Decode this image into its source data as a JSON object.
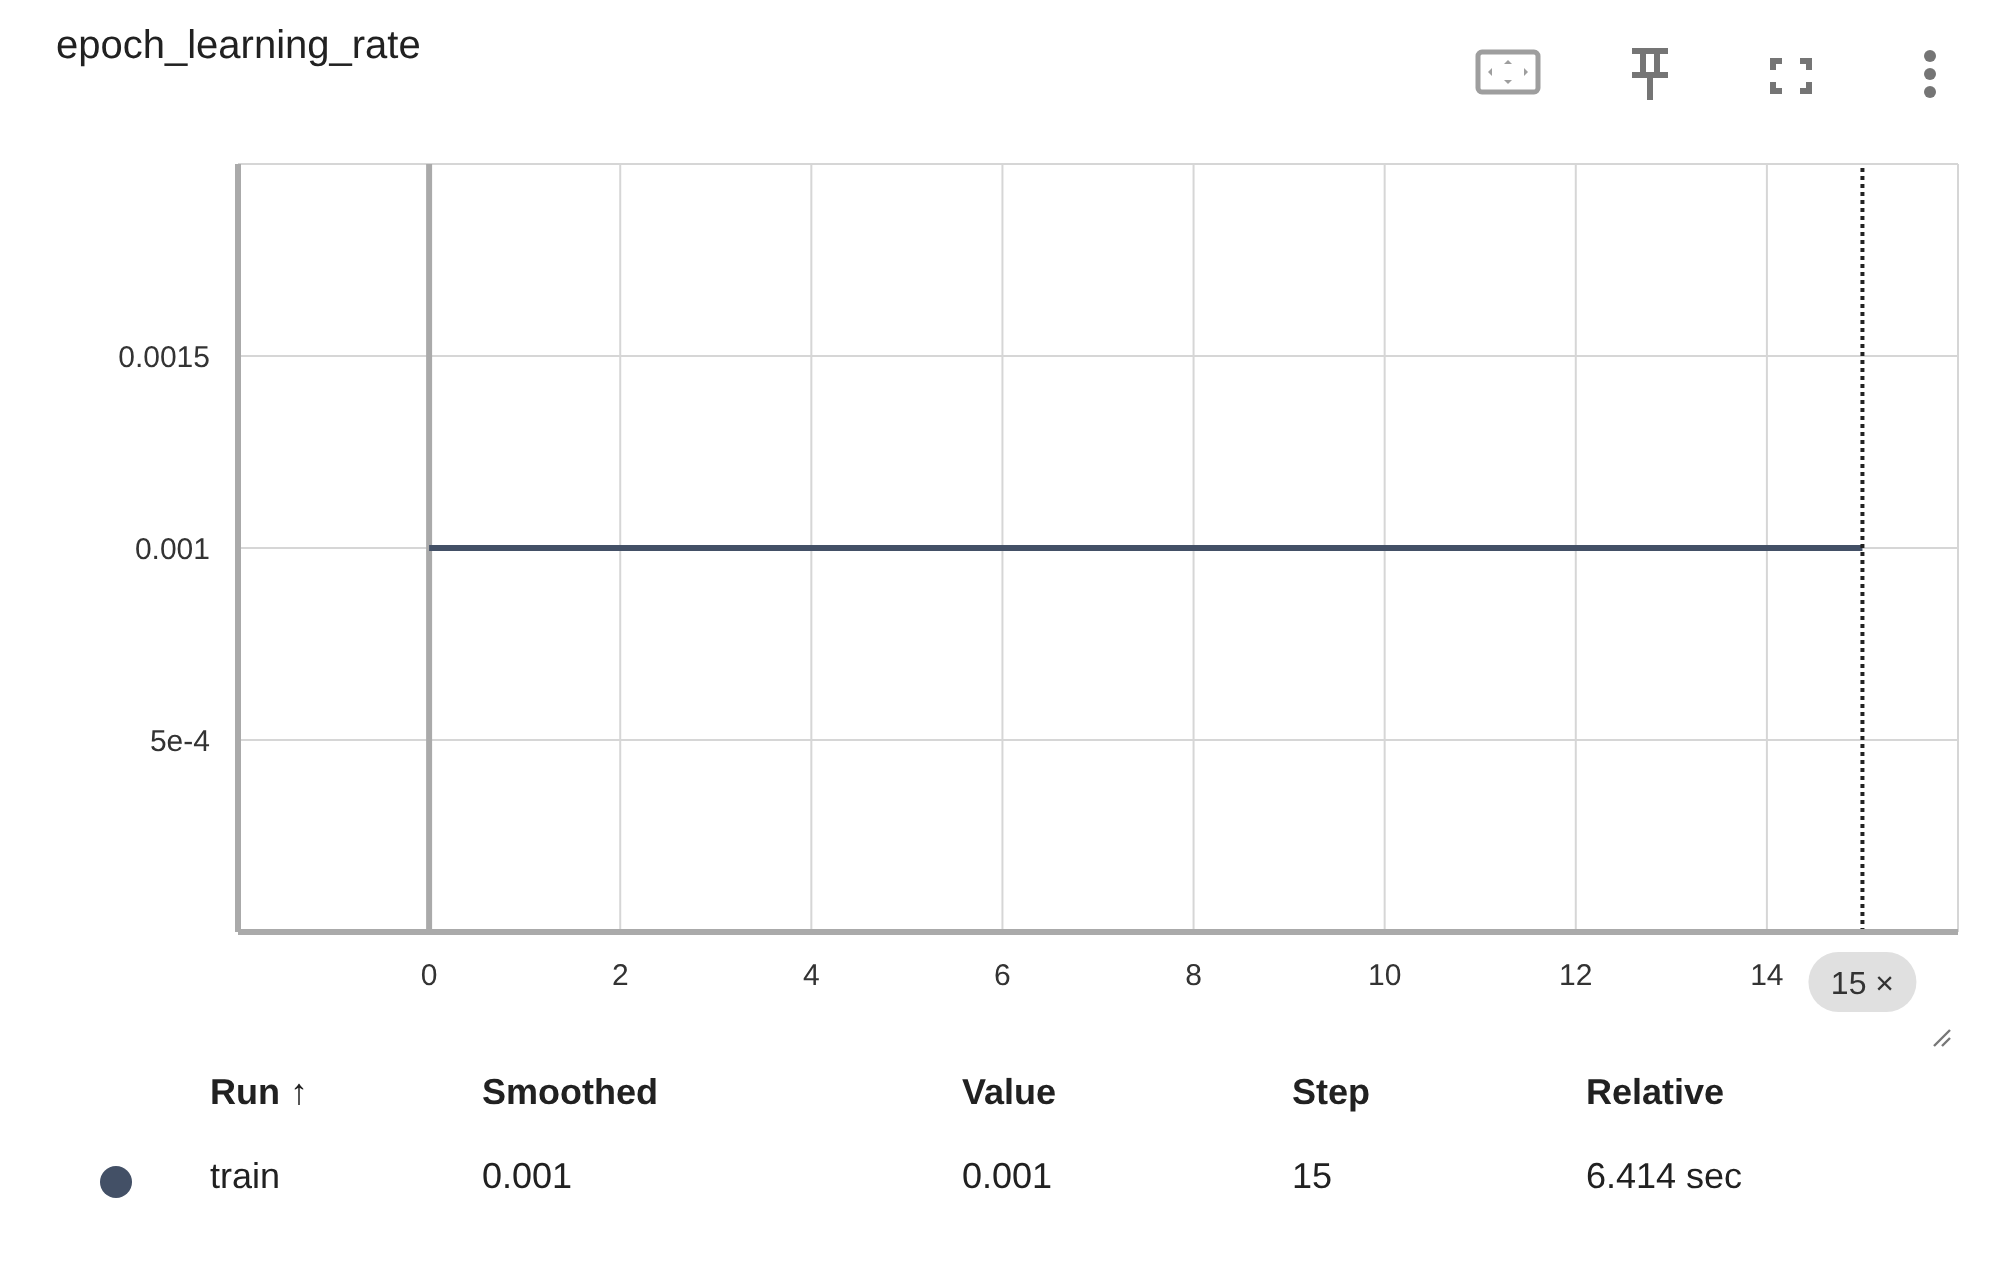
{
  "chart_data": {
    "type": "line",
    "title": "epoch_learning_rate",
    "x": [
      0,
      15
    ],
    "series": [
      {
        "name": "train",
        "color": "#435066",
        "values": [
          0.001,
          0.001
        ]
      }
    ],
    "xlim": [
      -2,
      16
    ],
    "xticks": [
      0,
      2,
      4,
      6,
      8,
      10,
      12,
      14
    ],
    "ylim": [
      0,
      0.002
    ],
    "yticks": [
      {
        "value": 0.0005,
        "label": "5e-4"
      },
      0.001,
      0.0015
    ],
    "grid": true,
    "legend": "bottom",
    "ref_lines": [
      {
        "axis": "x",
        "value": 15,
        "label": "15 ×",
        "line_style": "dotted",
        "color": "#222222"
      }
    ],
    "annotations": [
      "Run ↑",
      "Smoothed",
      "Value",
      "Step",
      "Relative",
      "0.001",
      "0.001",
      "15",
      "6.414 sec"
    ]
  }
}
